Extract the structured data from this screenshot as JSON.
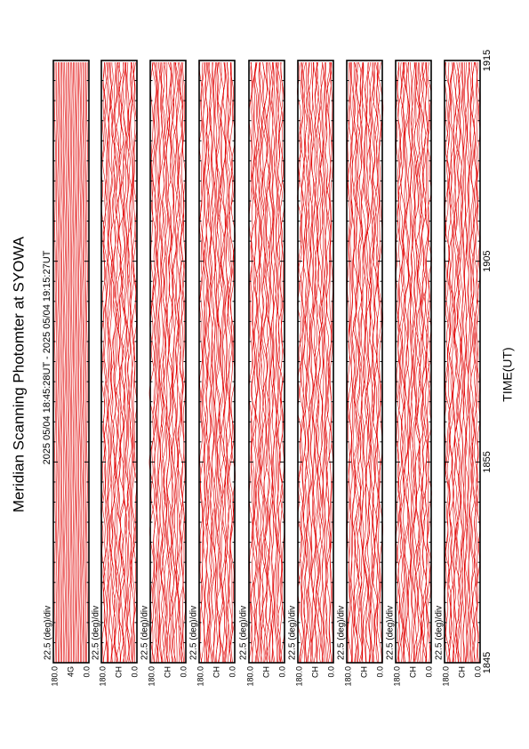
{
  "title": "Meridian Scanning Photomter at SYOWA",
  "time_range": "2025 05/04 18:45:28UT - 2025 05/04 19:15:27UT",
  "xlabel": "TIME(UT)",
  "ticks": [
    "1845",
    "1855",
    "1905",
    "1915"
  ],
  "panels": [
    {
      "scale": "22.5 (deg)/div",
      "top": "180.0",
      "bottom": "0.0",
      "channel": "4G"
    },
    {
      "scale": "22.5 (deg)/div",
      "top": "180.0",
      "bottom": "0.0",
      "channel": "CH"
    },
    {
      "scale": "22.5 (deg)/div",
      "top": "180.0",
      "bottom": "0.0",
      "channel": "CH"
    },
    {
      "scale": "22.5 (deg)/div",
      "top": "180.0",
      "bottom": "0.0",
      "channel": "CH"
    },
    {
      "scale": "22.5 (deg)/div",
      "top": "180.0",
      "bottom": "0.0",
      "channel": "CH"
    },
    {
      "scale": "22.5 (deg)/div",
      "top": "180.0",
      "bottom": "0.0",
      "channel": "CH"
    },
    {
      "scale": "22.5 (deg)/div",
      "top": "180.0",
      "bottom": "0.0",
      "channel": "CH"
    },
    {
      "scale": "22.5 (deg)/div",
      "top": "180.0",
      "bottom": "0.0",
      "channel": "CH"
    },
    {
      "scale": "22.5 (deg)/div",
      "top": "180.0",
      "bottom": "0.0",
      "channel": "CH"
    }
  ]
}
